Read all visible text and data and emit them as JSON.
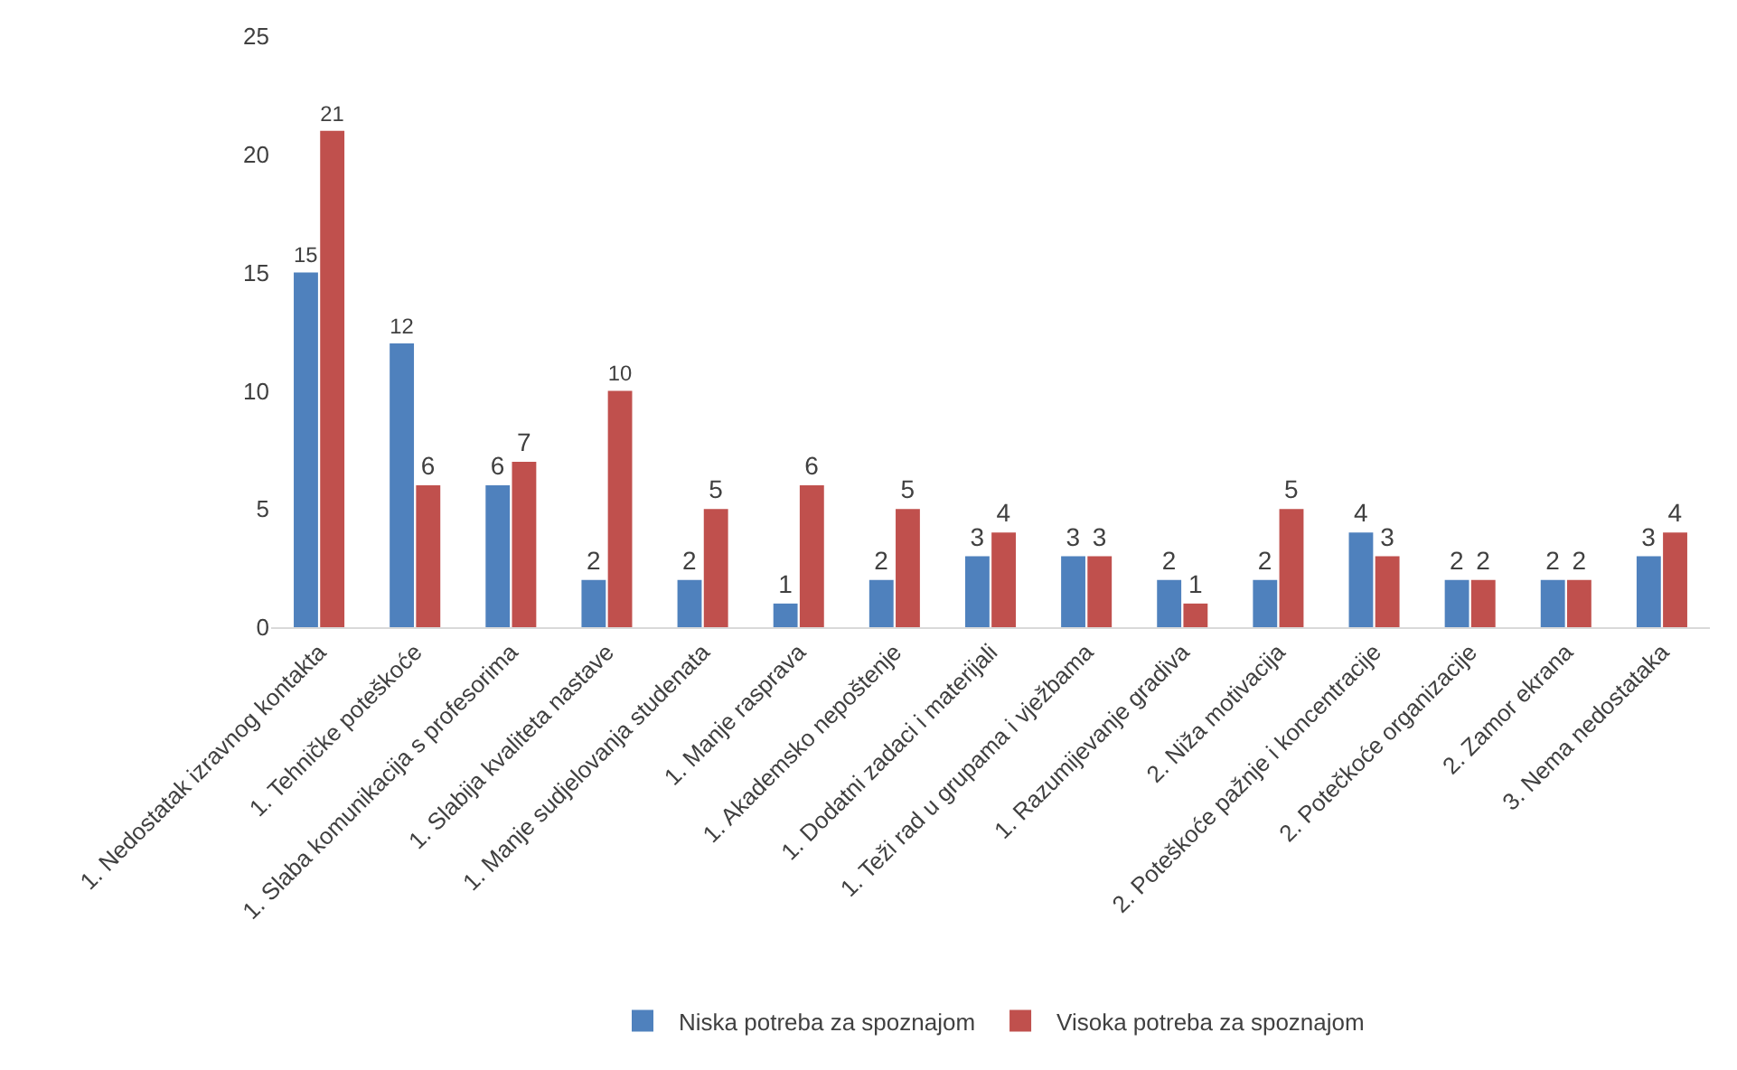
{
  "chart_data": {
    "type": "bar",
    "categories": [
      "1. Nedostatak izravnog kontakta",
      "1. Tehničke poteškoće",
      "1. Slaba komunikacija s profesorima",
      "1. Slabija kvaliteta nastave",
      "1. Manje sudjelovanja studenata",
      "1. Manje rasprava",
      "1. Akademsko nepoštenje",
      "1. Dodatni zadaci i materijali",
      "1. Teži rad u grupama i vježbama",
      "1. Razumijevanje gradiva",
      "2. Niža motivacija",
      "2. Poteškoće pažnje i koncentracije",
      "2. Potečkoće organizacije",
      "2. Zamor ekrana",
      "3. Nema nedostataka"
    ],
    "series": [
      {
        "name": "Niska potreba za spoznajom",
        "color": "#4f81bd",
        "values": [
          15,
          12,
          6,
          2,
          2,
          1,
          2,
          3,
          3,
          2,
          2,
          4,
          2,
          2,
          3
        ]
      },
      {
        "name": "Visoka potreba za spoznajom",
        "color": "#c0504d",
        "values": [
          21,
          6,
          7,
          10,
          5,
          6,
          5,
          4,
          3,
          1,
          5,
          3,
          2,
          2,
          4
        ]
      }
    ],
    "ylim": [
      0,
      25
    ],
    "yticks": [
      0,
      5,
      10,
      15,
      20,
      25
    ],
    "grid": false,
    "legend": "bottom",
    "data_labels": true
  }
}
